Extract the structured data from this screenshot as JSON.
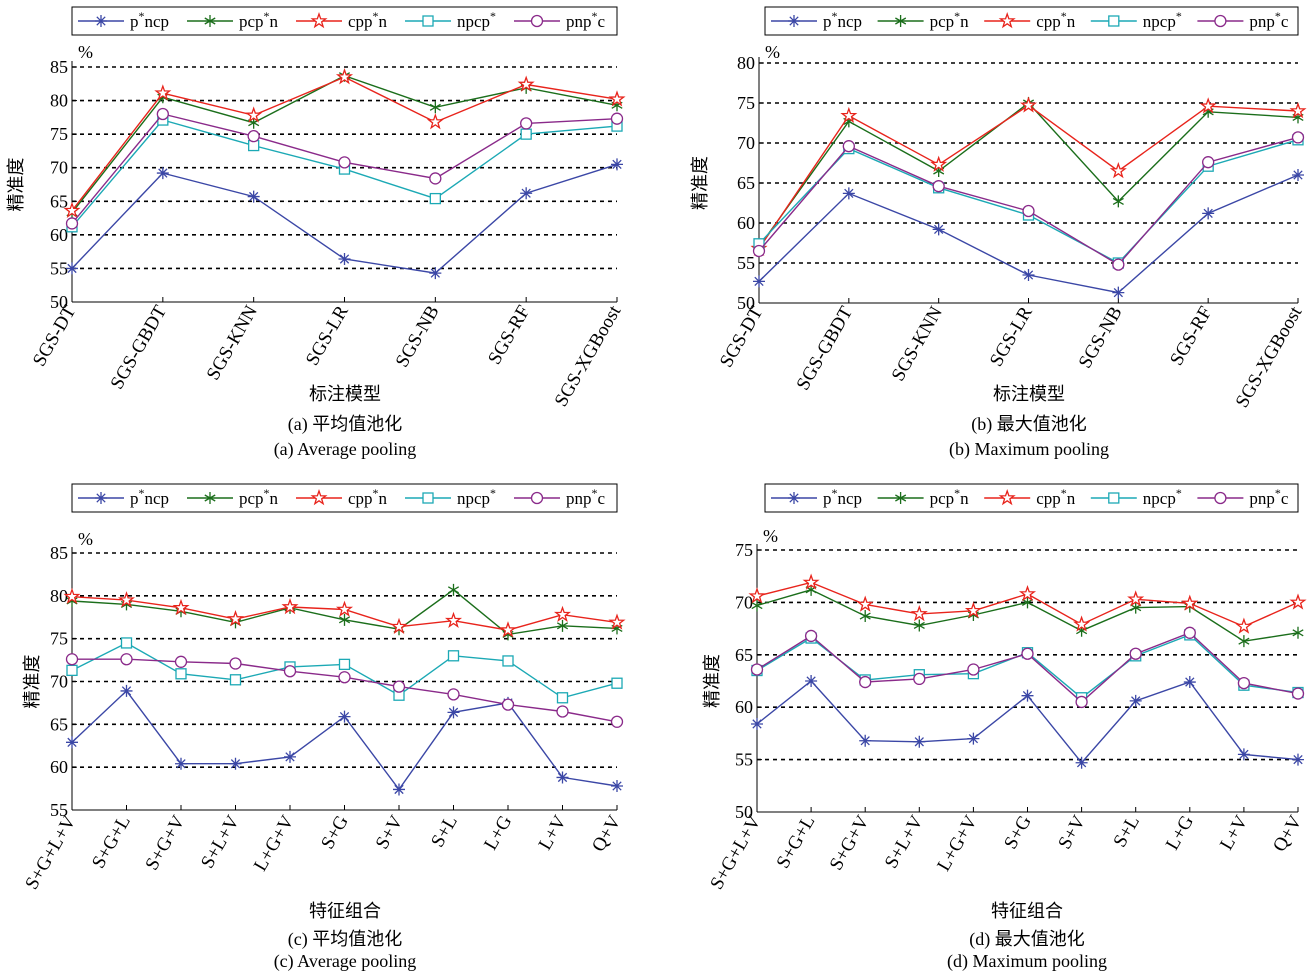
{
  "legend": {
    "entries": [
      {
        "label": "p*ncp",
        "color": "#3b47a6",
        "marker": "star-icon"
      },
      {
        "label": "pcp*n",
        "color": "#1b6e1b",
        "marker": "asterisk-icon"
      },
      {
        "label": "cpp*n",
        "color": "#e8241c",
        "marker": "pentagram-icon"
      },
      {
        "label": "npcp*",
        "color": "#1ca9b5",
        "marker": "square-icon"
      },
      {
        "label": "pnp*c",
        "color": "#8a2a8a",
        "marker": "circle-icon"
      }
    ]
  },
  "chart_data": [
    {
      "type": "line",
      "unit": "%",
      "ylabel": "精准度",
      "xlabel": "标注模型",
      "caption_cn": "(a) 平均值池化",
      "caption_en": "(a) Average pooling",
      "ylim": [
        50,
        85
      ],
      "yticks": [
        50,
        55,
        60,
        65,
        70,
        75,
        80,
        85
      ],
      "grid": "dashed horizontal",
      "legend_position": "top",
      "categories": [
        "SGS-DT",
        "SGS-GBDT",
        "SGS-KNN",
        "SGS-LR",
        "SGS-NB",
        "SGS-RF",
        "SGS-XGBoost"
      ],
      "series": [
        {
          "name": "p*ncp",
          "values": [
            55.0,
            69.2,
            65.7,
            56.4,
            54.3,
            66.2,
            70.5
          ]
        },
        {
          "name": "pcp*n",
          "values": [
            63.3,
            80.5,
            76.7,
            83.7,
            79.0,
            81.9,
            79.3
          ]
        },
        {
          "name": "cpp*n",
          "values": [
            63.6,
            81.1,
            77.8,
            83.5,
            76.8,
            82.4,
            80.2
          ]
        },
        {
          "name": "npcp*",
          "values": [
            61.2,
            77.1,
            73.3,
            69.8,
            65.4,
            75.0,
            76.2
          ]
        },
        {
          "name": "pnp*c",
          "values": [
            61.7,
            78.0,
            74.7,
            70.8,
            68.4,
            76.6,
            77.3
          ]
        }
      ]
    },
    {
      "type": "line",
      "unit": "%",
      "ylabel": "精准度",
      "xlabel": "标注模型",
      "caption_cn": "(b) 最大值池化",
      "caption_en": "(b) Maximum pooling",
      "ylim": [
        50,
        80
      ],
      "yticks": [
        50,
        55,
        60,
        65,
        70,
        75,
        80
      ],
      "grid": "dashed horizontal",
      "legend_position": "top",
      "categories": [
        "SGS-DT",
        "SGS-GBDT",
        "SGS-KNN",
        "SGS-LR",
        "SGS-NB",
        "SGS-RF",
        "SGS-XGBoost"
      ],
      "series": [
        {
          "name": "p*ncp",
          "values": [
            52.7,
            63.7,
            59.2,
            53.5,
            51.3,
            61.2,
            66.0
          ]
        },
        {
          "name": "pcp*n",
          "values": [
            57.0,
            72.7,
            66.5,
            75.0,
            62.7,
            73.9,
            73.2
          ]
        },
        {
          "name": "cpp*n",
          "values": [
            56.8,
            73.4,
            67.3,
            74.7,
            66.5,
            74.6,
            74.0
          ]
        },
        {
          "name": "npcp*",
          "values": [
            57.4,
            69.3,
            64.4,
            61.0,
            55.0,
            67.1,
            70.4
          ]
        },
        {
          "name": "pnp*c",
          "values": [
            56.5,
            69.6,
            64.6,
            61.5,
            54.8,
            67.6,
            70.7
          ]
        }
      ]
    },
    {
      "type": "line",
      "unit": "%",
      "ylabel": "精准度",
      "xlabel": "特征组合",
      "caption_cn": "(c) 平均值池化",
      "caption_en": "(c) Average pooling",
      "ylim": [
        55,
        85
      ],
      "yticks": [
        55,
        60,
        65,
        70,
        75,
        80,
        85
      ],
      "grid": "dashed horizontal",
      "legend_position": "top",
      "categories": [
        "S+G+L+V",
        "S+G+L",
        "S+G+V",
        "S+L+V",
        "L+G+V",
        "S+G",
        "S+V",
        "S+L",
        "L+G",
        "L+V",
        "Q+V"
      ],
      "series": [
        {
          "name": "p*ncp",
          "values": [
            62.9,
            68.9,
            60.4,
            60.4,
            61.2,
            65.9,
            57.4,
            66.4,
            67.5,
            58.8,
            57.8
          ]
        },
        {
          "name": "pcp*n",
          "values": [
            79.4,
            79.0,
            78.2,
            76.9,
            78.6,
            77.2,
            76.1,
            80.7,
            75.5,
            76.5,
            76.2
          ]
        },
        {
          "name": "cpp*n",
          "values": [
            79.9,
            79.5,
            78.6,
            77.3,
            78.7,
            78.4,
            76.4,
            77.1,
            76.0,
            77.8,
            76.9
          ]
        },
        {
          "name": "npcp*",
          "values": [
            71.3,
            74.5,
            70.9,
            70.2,
            71.7,
            72.0,
            68.4,
            73.0,
            72.4,
            68.1,
            69.8
          ]
        },
        {
          "name": "pnp*c",
          "values": [
            72.6,
            72.6,
            72.3,
            72.1,
            71.2,
            70.5,
            69.4,
            68.5,
            67.3,
            66.5,
            65.3
          ]
        }
      ]
    },
    {
      "type": "line",
      "unit": "%",
      "ylabel": "精准度",
      "xlabel": "特征组合",
      "caption_cn": "(d) 最大值池化",
      "caption_en": "(d) Maximum pooling",
      "ylim": [
        50,
        75
      ],
      "yticks": [
        50,
        55,
        60,
        65,
        70,
        75
      ],
      "grid": "dashed horizontal",
      "legend_position": "top",
      "categories": [
        "S+G+L+V",
        "S+G+L",
        "S+G+V",
        "S+L+V",
        "L+G+V",
        "S+G",
        "S+V",
        "S+L",
        "L+G",
        "L+V",
        "Q+V"
      ],
      "series": [
        {
          "name": "p*ncp",
          "values": [
            58.4,
            62.5,
            56.8,
            56.7,
            57.0,
            61.1,
            54.7,
            60.6,
            62.4,
            55.5,
            55.0
          ]
        },
        {
          "name": "pcp*n",
          "values": [
            69.7,
            71.2,
            68.7,
            67.8,
            68.8,
            70.0,
            67.3,
            69.5,
            69.6,
            66.3,
            67.1
          ]
        },
        {
          "name": "cpp*n",
          "values": [
            70.6,
            71.9,
            69.8,
            68.9,
            69.2,
            70.8,
            67.9,
            70.3,
            69.9,
            67.7,
            70.0
          ]
        },
        {
          "name": "npcp*",
          "values": [
            63.5,
            66.6,
            62.6,
            63.1,
            63.2,
            65.2,
            60.9,
            64.9,
            66.9,
            62.1,
            61.4
          ]
        },
        {
          "name": "pnp*c",
          "values": [
            63.6,
            66.8,
            62.4,
            62.7,
            63.6,
            65.1,
            60.5,
            65.1,
            67.1,
            62.3,
            61.3
          ]
        }
      ]
    }
  ]
}
